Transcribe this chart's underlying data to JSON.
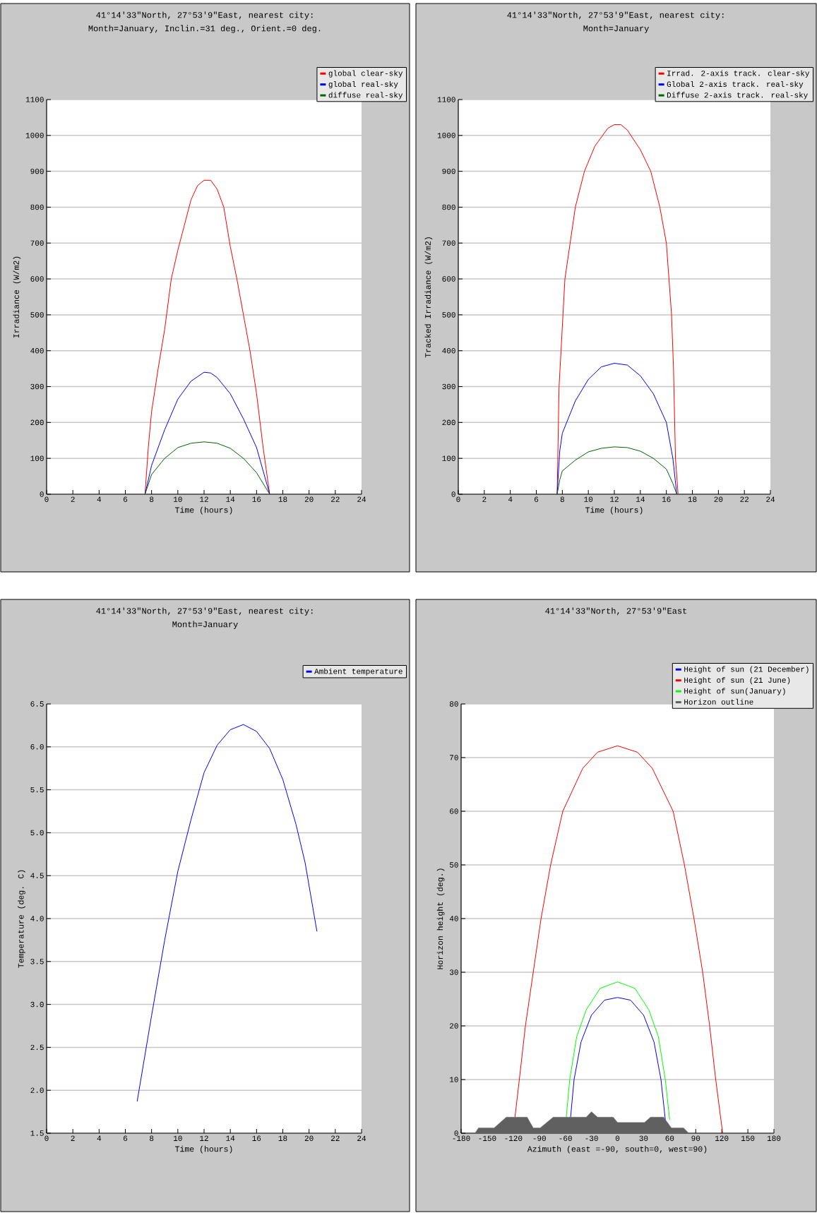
{
  "chart_data": [
    {
      "type": "line",
      "title": "41°14′33\"North, 27°53′9\"East, nearest city:",
      "subtitle": "Month=January, Inclin.=31 deg., Orient.=0 deg.",
      "xlabel": "Time (hours)",
      "ylabel": "Irradiance (W/m2)",
      "xlim": [
        0,
        24
      ],
      "ylim": [
        0,
        1100
      ],
      "xticks": [
        0,
        2,
        4,
        6,
        8,
        10,
        12,
        14,
        16,
        18,
        20,
        22,
        24
      ],
      "yticks": [
        0,
        100,
        200,
        300,
        400,
        500,
        600,
        700,
        800,
        900,
        1000,
        1100
      ],
      "grid": "y",
      "legend": "top right",
      "series": [
        {
          "name": "global clear-sky",
          "color": "#ff0000",
          "x": [
            7.5,
            7.75,
            8,
            8.5,
            9,
            9.5,
            10,
            10.5,
            11,
            11.5,
            12,
            12.5,
            13,
            13.5,
            14,
            14.5,
            15,
            15.5,
            16,
            16.5,
            17
          ],
          "values": [
            0,
            130,
            230,
            350,
            460,
            600,
            680,
            750,
            820,
            860,
            875,
            875,
            850,
            800,
            690,
            600,
            500,
            400,
            280,
            130,
            0
          ]
        },
        {
          "name": "global real-sky",
          "color": "#0000ff",
          "x": [
            7.5,
            8,
            9,
            10,
            11,
            12,
            12.5,
            13,
            14,
            15,
            16,
            17
          ],
          "values": [
            0,
            80,
            180,
            265,
            315,
            340,
            338,
            325,
            280,
            210,
            130,
            0
          ]
        },
        {
          "name": "diffuse real-sky",
          "color": "#006400",
          "x": [
            7.5,
            8,
            9,
            10,
            11,
            12,
            13,
            14,
            15,
            16,
            17
          ],
          "values": [
            0,
            55,
            100,
            130,
            142,
            146,
            142,
            128,
            100,
            60,
            0
          ]
        }
      ]
    },
    {
      "type": "line",
      "title": "41°14′33\"North, 27°53′9\"East, nearest city:",
      "subtitle": "Month=January",
      "xlabel": "Time (hours)",
      "ylabel": "Tracked Irradiance (W/m2)",
      "xlim": [
        0,
        24
      ],
      "ylim": [
        0,
        1100
      ],
      "xticks": [
        0,
        2,
        4,
        6,
        8,
        10,
        12,
        14,
        16,
        18,
        20,
        22,
        24
      ],
      "yticks": [
        0,
        100,
        200,
        300,
        400,
        500,
        600,
        700,
        800,
        900,
        1000,
        1100
      ],
      "grid": "y",
      "legend": "top right",
      "series": [
        {
          "name": "Irrad. 2-axis track. clear-sky",
          "color": "#ff0000",
          "x": [
            7.6,
            7.75,
            7.9,
            8.2,
            8.6,
            9,
            9.7,
            10.5,
            11.5,
            12,
            12.5,
            13,
            14,
            14.8,
            15.5,
            16,
            16.4,
            16.55,
            16.7,
            16.9
          ],
          "values": [
            0,
            300,
            400,
            600,
            700,
            800,
            900,
            970,
            1020,
            1030,
            1030,
            1015,
            960,
            900,
            800,
            700,
            500,
            350,
            100,
            0
          ]
        },
        {
          "name": "Global 2-axis track. real-sky",
          "color": "#0000ff",
          "x": [
            7.6,
            7.8,
            8,
            9,
            10,
            11,
            12,
            13,
            14,
            15,
            16,
            16.5,
            16.8
          ],
          "values": [
            0,
            120,
            170,
            260,
            320,
            355,
            365,
            360,
            330,
            280,
            200,
            100,
            0
          ]
        },
        {
          "name": "Diffuse 2-axis track. real-sky",
          "color": "#006400",
          "x": [
            7.6,
            7.8,
            8,
            9,
            10,
            11,
            12,
            13,
            14,
            15,
            16,
            16.5,
            16.8
          ],
          "values": [
            0,
            40,
            65,
            95,
            118,
            128,
            132,
            130,
            120,
            100,
            70,
            30,
            0
          ]
        }
      ]
    },
    {
      "type": "line",
      "title": "41°14′33\"North, 27°53′9\"East, nearest city:",
      "subtitle": "Month=January",
      "xlabel": "Time (hours)",
      "ylabel": "Temperature (deg. C)",
      "xlim": [
        0,
        24
      ],
      "ylim": [
        1.5,
        6.5
      ],
      "xticks": [
        0,
        2,
        4,
        6,
        8,
        10,
        12,
        14,
        16,
        18,
        20,
        22,
        24
      ],
      "yticks": [
        1.5,
        {
          "value": 2,
          "label": "2.0"
        },
        2.5,
        {
          "value": 3,
          "label": "3.0"
        },
        3.5,
        {
          "value": 4,
          "label": "4.0"
        },
        4.5,
        {
          "value": 5,
          "label": "5.0"
        },
        5.5,
        {
          "value": 6,
          "label": "6.0"
        },
        6.5
      ],
      "grid": "y",
      "legend": "top right",
      "series": [
        {
          "name": "Ambient temperature",
          "color": "#0000ff",
          "x": [
            6.9,
            8,
            9,
            10,
            11,
            12,
            13,
            14,
            15,
            16,
            17,
            18,
            19,
            19.7,
            20.6
          ],
          "values": [
            1.87,
            2.87,
            3.75,
            4.55,
            5.15,
            5.7,
            6.02,
            6.2,
            6.26,
            6.18,
            5.98,
            5.62,
            5.1,
            4.65,
            3.85
          ]
        }
      ]
    },
    {
      "type": "line",
      "title": "41°14′33\"North, 27°53′9\"East",
      "xlabel": "Azimuth (east =-90, south=0, west=90)",
      "ylabel": "Horizon height (deg.)",
      "xlim": [
        -180,
        180
      ],
      "ylim": [
        0,
        80
      ],
      "xticks": [
        -180,
        -150,
        -120,
        -90,
        -60,
        -30,
        0,
        30,
        60,
        90,
        120,
        150,
        180
      ],
      "yticks": [
        0,
        10,
        20,
        30,
        40,
        50,
        60,
        70,
        80
      ],
      "grid": "y",
      "legend": "top right",
      "series": [
        {
          "name": "Height of sun (21 December)",
          "color": "#0000ff",
          "x": [
            -54,
            -50,
            -42,
            -30,
            -15,
            0,
            15,
            30,
            42,
            50,
            55
          ],
          "values": [
            3,
            10,
            17,
            22,
            24.8,
            25.3,
            24.8,
            22,
            17,
            10,
            2.5
          ]
        },
        {
          "name": "Height of sun (21 June)",
          "color": "#ff0000",
          "x": [
            -118,
            -113,
            -106,
            -97,
            -88,
            -77,
            -63,
            -40,
            -23,
            0,
            23,
            40,
            64,
            77,
            88,
            98,
            106,
            113,
            121
          ],
          "values": [
            3,
            10,
            20,
            30,
            40,
            50,
            60,
            68,
            71,
            72.2,
            71,
            68,
            60,
            50,
            40,
            30,
            20,
            10,
            0
          ]
        },
        {
          "name": "Height of sun(January)",
          "color": "#00ff00",
          "x": [
            -59,
            -55,
            -47,
            -36,
            -20,
            0,
            20,
            36,
            47,
            55,
            60
          ],
          "values": [
            3,
            10,
            18,
            23,
            27,
            28.2,
            27,
            23,
            18,
            10,
            2.5
          ]
        },
        {
          "name": "Horizon outline",
          "type": "area",
          "color": "#606060",
          "x": [
            -164,
            -160,
            -142,
            -128,
            -104,
            -97,
            -89,
            -74,
            -36,
            -30,
            -23,
            -5,
            0,
            31,
            38,
            53,
            62,
            76,
            82
          ],
          "values": [
            0,
            1,
            1,
            3,
            3,
            1,
            1,
            3,
            3,
            4,
            3,
            3,
            2,
            2,
            3,
            3,
            1,
            1,
            0
          ]
        }
      ]
    }
  ]
}
